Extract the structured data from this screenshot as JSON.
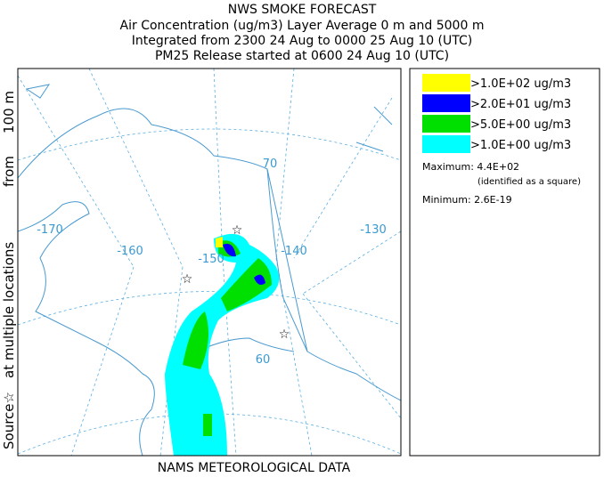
{
  "header": {
    "title": "NWS SMOKE FORECAST",
    "lines": [
      "Air Concentration (ug/m3) Layer Average    0 m and  5000 m",
      "Integrated from 2300 24 Aug to 0000 25 Aug 10 (UTC)",
      "PM25 Release started at 0600 24 Aug 10 (UTC)"
    ]
  },
  "side_label": [
    "Source☆",
    "at multiple locations",
    "from",
    "100 m"
  ],
  "legend": {
    "items": [
      {
        "label": ">1.0E+02 ug/m3",
        "color": "#ffff00"
      },
      {
        "label": ">2.0E+01 ug/m3",
        "color": "#0000ff"
      },
      {
        "label": ">5.0E+00 ug/m3",
        "color": "#00e000"
      },
      {
        "label": ">1.0E+00 ug/m3",
        "color": "#00ffff"
      }
    ],
    "maximum": "Maximum: 4.4E+02",
    "note": "(identified as a square)",
    "minimum": "Minimum: 2.6E-19"
  },
  "map": {
    "labels": [
      "70",
      "-170",
      "-160",
      "-150",
      "-140",
      "-130",
      "60"
    ]
  },
  "footer": "NAMS METEOROLOGICAL DATA"
}
